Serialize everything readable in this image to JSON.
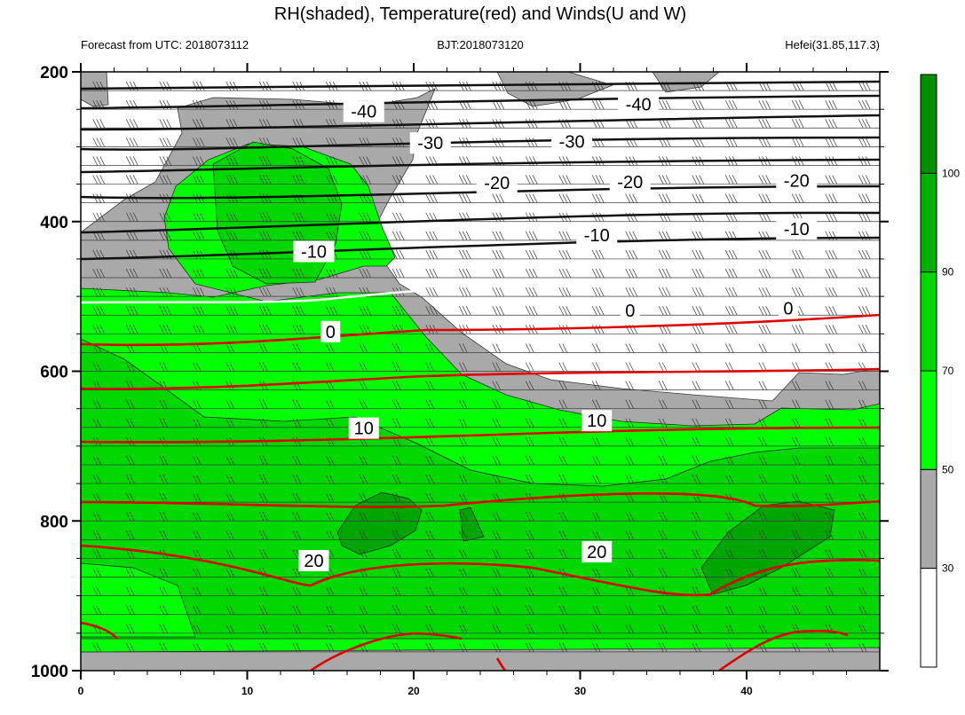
{
  "chart_data": {
    "type": "contour",
    "title": "RH(shaded), Temperature(red) and Winds(U and W)",
    "subtitle_left": "Forecast from UTC: 2018073112",
    "subtitle_center": "BJT:2018073120",
    "subtitle_right": "Hefei(31.85,117.3)",
    "x_range": [
      0,
      48
    ],
    "x_ticks": [
      0,
      10,
      20,
      30,
      40
    ],
    "y_range": [
      200,
      1000
    ],
    "y_ticks": [
      200,
      400,
      600,
      800,
      1000
    ],
    "y_reversed": true,
    "colorbar": {
      "labels": [
        30,
        50,
        70,
        90,
        100
      ],
      "colors": [
        "#ffffff",
        "#a9a9a9",
        "#00ff00",
        "#00d800",
        "#00b000",
        "#008f00"
      ]
    },
    "isotherm_labels": [
      {
        "text": "-40",
        "x": 17,
        "p": 253
      },
      {
        "text": "-40",
        "x": 33.5,
        "p": 243
      },
      {
        "text": "-30",
        "x": 21,
        "p": 295
      },
      {
        "text": "-30",
        "x": 29.5,
        "p": 293
      },
      {
        "text": "-20",
        "x": 25,
        "p": 348
      },
      {
        "text": "-20",
        "x": 33,
        "p": 347
      },
      {
        "text": "-20",
        "x": 43,
        "p": 345
      },
      {
        "text": "-10",
        "x": 14,
        "p": 440
      },
      {
        "text": "-10",
        "x": 31,
        "p": 418
      },
      {
        "text": "-10",
        "x": 43,
        "p": 410
      },
      {
        "text": "0",
        "x": 15,
        "p": 547
      },
      {
        "text": "0",
        "x": 33,
        "p": 519
      },
      {
        "text": "0",
        "x": 42.5,
        "p": 516
      },
      {
        "text": "10",
        "x": 17,
        "p": 676
      },
      {
        "text": "10",
        "x": 31,
        "p": 666
      },
      {
        "text": "20",
        "x": 14,
        "p": 853
      },
      {
        "text": "20",
        "x": 31,
        "p": 841
      }
    ]
  }
}
